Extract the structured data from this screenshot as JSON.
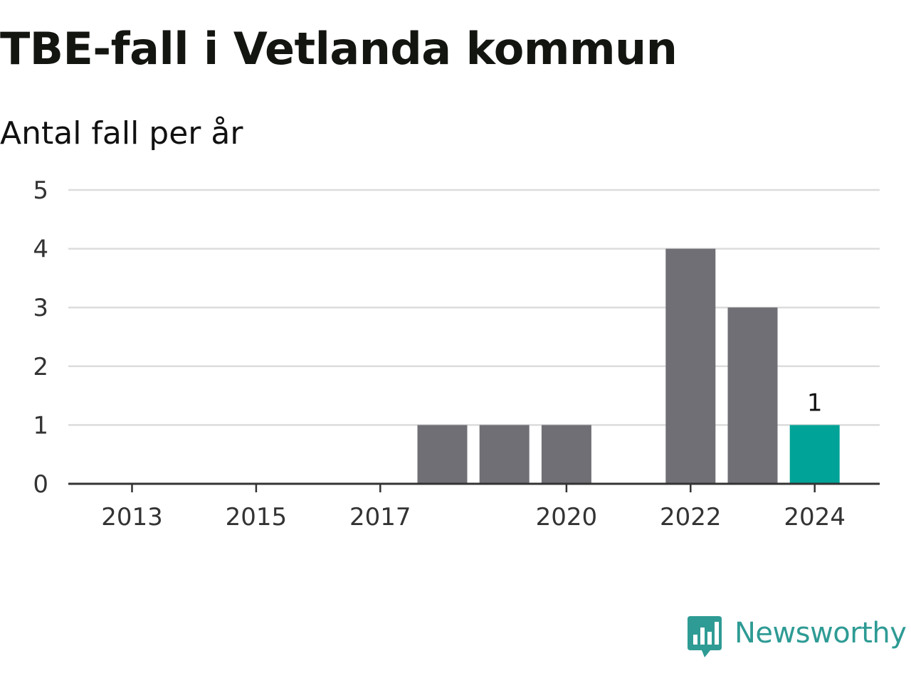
{
  "chart_data": {
    "type": "bar",
    "title": "TBE-fall i Vetlanda kommun",
    "subtitle": "Antal fall per år",
    "x": [
      2013,
      2014,
      2015,
      2016,
      2017,
      2018,
      2019,
      2020,
      2021,
      2022,
      2023,
      2024
    ],
    "values": [
      0,
      0,
      0,
      0,
      0,
      1,
      1,
      1,
      0,
      4,
      3,
      1
    ],
    "x_tick_labels": [
      "2013",
      "2015",
      "2017",
      "2020",
      "2022",
      "2024"
    ],
    "y_ticks": [
      0,
      1,
      2,
      3,
      4,
      5
    ],
    "ylim": [
      0,
      5
    ],
    "grid": true,
    "bar_color": "#706f75",
    "highlight_color": "#00a397",
    "highlight_year": 2024,
    "data_labels": [
      {
        "x": 2024,
        "label": "1"
      }
    ]
  },
  "branding": {
    "logo_text": "Newsworthy",
    "logo_icon": "newsworthy-logo-icon",
    "logo_color": "#2e9b94"
  }
}
